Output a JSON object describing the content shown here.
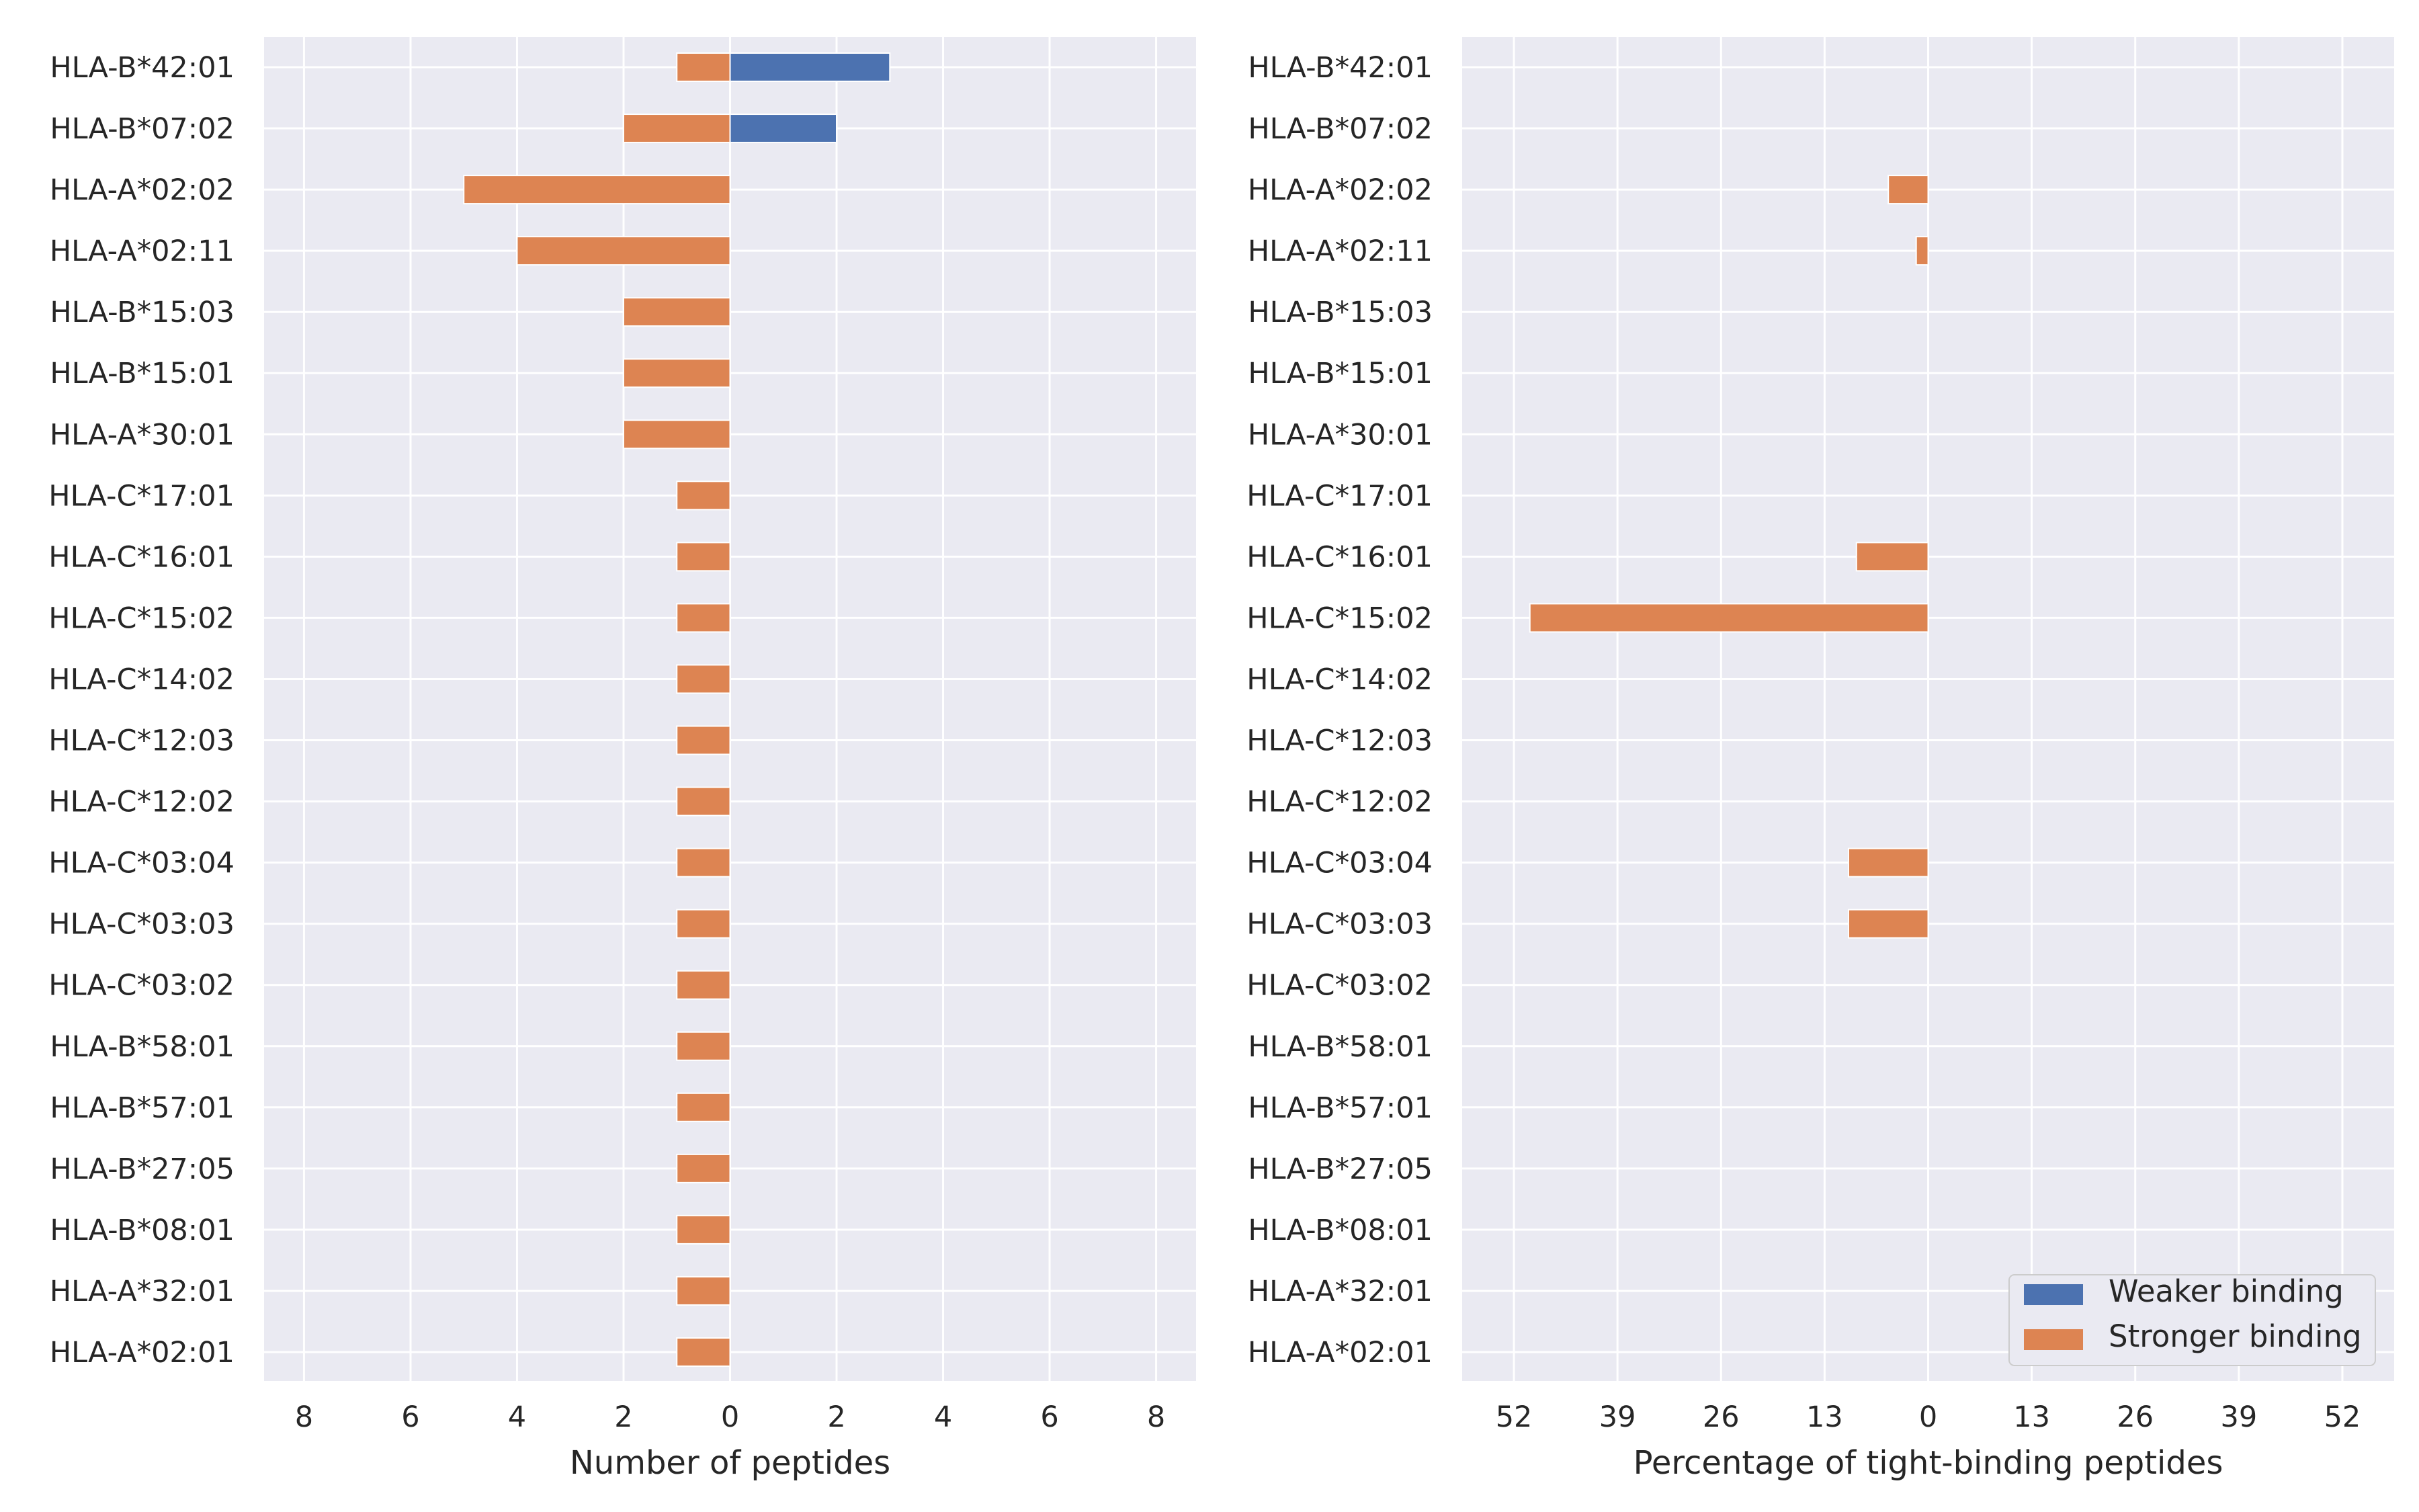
{
  "chart_data": [
    {
      "type": "bar",
      "orientation": "horizontal",
      "stacked": true,
      "diverging": true,
      "xlabel": "Number of peptides",
      "ylabel": "",
      "xlim": [
        -8.75,
        8.75
      ],
      "xticks": [
        -8,
        -6,
        -4,
        -2,
        0,
        2,
        4,
        6,
        8
      ],
      "xtick_labels": [
        "8",
        "6",
        "4",
        "2",
        "0",
        "2",
        "4",
        "6",
        "8"
      ],
      "grid": true,
      "categories": [
        "HLA-B*42:01",
        "HLA-B*07:02",
        "HLA-A*02:02",
        "HLA-A*02:11",
        "HLA-B*15:03",
        "HLA-B*15:01",
        "HLA-A*30:01",
        "HLA-C*17:01",
        "HLA-C*16:01",
        "HLA-C*15:02",
        "HLA-C*14:02",
        "HLA-C*12:03",
        "HLA-C*12:02",
        "HLA-C*03:04",
        "HLA-C*03:03",
        "HLA-C*03:02",
        "HLA-B*58:01",
        "HLA-B*57:01",
        "HLA-B*27:05",
        "HLA-B*08:01",
        "HLA-A*32:01",
        "HLA-A*02:01"
      ],
      "series": [
        {
          "name": "Weaker binding",
          "side": "right",
          "color": "#4c72b0",
          "values": [
            3,
            2,
            0,
            0,
            0,
            0,
            0,
            0,
            0,
            0,
            0,
            0,
            0,
            0,
            0,
            0,
            0,
            0,
            0,
            0,
            0,
            0
          ]
        },
        {
          "name": "Stronger binding",
          "side": "left",
          "color": "#dd8452",
          "values": [
            1,
            2,
            5,
            4,
            2,
            2,
            2,
            1,
            1,
            1,
            1,
            1,
            1,
            1,
            1,
            1,
            1,
            1,
            1,
            1,
            1,
            1
          ]
        }
      ]
    },
    {
      "type": "bar",
      "orientation": "horizontal",
      "stacked": true,
      "diverging": true,
      "xlabel": "Percentage of tight-binding peptides",
      "ylabel": "",
      "xlim": [
        -58.5,
        58.5
      ],
      "xticks": [
        -52,
        -39,
        -26,
        -13,
        0,
        13,
        26,
        39,
        52
      ],
      "xtick_labels": [
        "52",
        "39",
        "26",
        "13",
        "0",
        "13",
        "26",
        "39",
        "52"
      ],
      "grid": true,
      "legend_position": "lower-right",
      "categories": [
        "HLA-B*42:01",
        "HLA-B*07:02",
        "HLA-A*02:02",
        "HLA-A*02:11",
        "HLA-B*15:03",
        "HLA-B*15:01",
        "HLA-A*30:01",
        "HLA-C*17:01",
        "HLA-C*16:01",
        "HLA-C*15:02",
        "HLA-C*14:02",
        "HLA-C*12:03",
        "HLA-C*12:02",
        "HLA-C*03:04",
        "HLA-C*03:03",
        "HLA-C*03:02",
        "HLA-B*58:01",
        "HLA-B*57:01",
        "HLA-B*27:05",
        "HLA-B*08:01",
        "HLA-A*32:01",
        "HLA-A*02:01"
      ],
      "series": [
        {
          "name": "Weaker binding",
          "side": "right",
          "color": "#4c72b0",
          "values": [
            0,
            0,
            0,
            0,
            0,
            0,
            0,
            0,
            0,
            0,
            0,
            0,
            0,
            0,
            0,
            0,
            0,
            0,
            0,
            0,
            0,
            0
          ]
        },
        {
          "name": "Stronger binding",
          "side": "left",
          "color": "#dd8452",
          "values": [
            0,
            0,
            5,
            1.5,
            0,
            0,
            0,
            0,
            9,
            50,
            0,
            0,
            0,
            10,
            10,
            0,
            0,
            0,
            0,
            0,
            0,
            0
          ]
        }
      ]
    }
  ],
  "legend": {
    "items": [
      {
        "label": "Weaker binding",
        "color": "#4c72b0"
      },
      {
        "label": "Stronger binding",
        "color": "#dd8452"
      }
    ]
  },
  "colors": {
    "axes_background": "#eaeaf2",
    "grid": "#ffffff",
    "text": "#262626"
  }
}
